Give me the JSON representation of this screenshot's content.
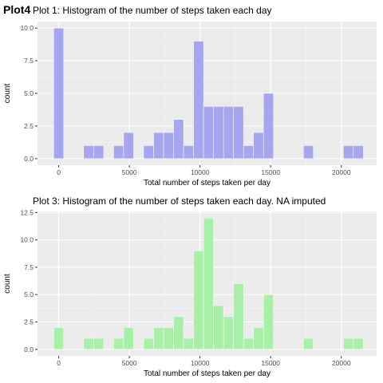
{
  "overlay_tag": "Plot4",
  "chart_data": [
    {
      "type": "bar",
      "title": "Plot 1: Histogram of the number of steps taken each day",
      "xlabel": "Total number of steps taken per day",
      "ylabel": "count",
      "xlim": [
        -1500,
        22500
      ],
      "ylim": [
        -0.5,
        10.5
      ],
      "x_ticks": [
        0,
        5000,
        10000,
        15000,
        20000
      ],
      "x_tick_labels": [
        "0",
        "5000",
        "10000",
        "15000",
        "20000"
      ],
      "y_ticks": [
        0.0,
        2.5,
        5.0,
        7.5,
        10.0
      ],
      "y_tick_labels": [
        "0.0",
        "2.5",
        "5.0",
        "7.5",
        "10.0"
      ],
      "bin_width": 707,
      "bin_centers": [
        0,
        707,
        1414,
        2121,
        2828,
        3535,
        4242,
        4949,
        5656,
        6363,
        7070,
        7777,
        8484,
        9191,
        9898,
        10605,
        11312,
        12019,
        12726,
        13433,
        14140,
        14847,
        15554,
        16261,
        16968,
        17675,
        18382,
        19089,
        19796,
        20503,
        21210
      ],
      "values": [
        10,
        0,
        0,
        1,
        1,
        0,
        1,
        2,
        0,
        1,
        2,
        2,
        3,
        1,
        9,
        4,
        4,
        4,
        4,
        1,
        2,
        5,
        0,
        0,
        0,
        1,
        0,
        0,
        0,
        1,
        1
      ],
      "fill": "#a5a5f0",
      "grid": true
    },
    {
      "type": "bar",
      "title": "Plot 3: Histogram of the number of steps taken each day. NA imputed",
      "xlabel": "Total number of steps taken per day",
      "ylabel": "count",
      "xlim": [
        -1500,
        22500
      ],
      "ylim": [
        -0.6,
        12.6
      ],
      "x_ticks": [
        0,
        5000,
        10000,
        15000,
        20000
      ],
      "x_tick_labels": [
        "0",
        "5000",
        "10000",
        "15000",
        "20000"
      ],
      "y_ticks": [
        0.0,
        2.5,
        5.0,
        7.5,
        10.0,
        12.5
      ],
      "y_tick_labels": [
        "0.0",
        "2.5",
        "5.0",
        "7.5",
        "10.0",
        "12.5"
      ],
      "bin_width": 707,
      "bin_centers": [
        0,
        707,
        1414,
        2121,
        2828,
        3535,
        4242,
        4949,
        5656,
        6363,
        7070,
        7777,
        8484,
        9191,
        9898,
        10605,
        11312,
        12019,
        12726,
        13433,
        14140,
        14847,
        15554,
        16261,
        16968,
        17675,
        18382,
        19089,
        19796,
        20503,
        21210
      ],
      "values": [
        2,
        0,
        0,
        1,
        1,
        0,
        1,
        2,
        0,
        1,
        2,
        2,
        3,
        1,
        9,
        12,
        4,
        3,
        6,
        1,
        2,
        5,
        0,
        0,
        0,
        1,
        0,
        0,
        0,
        1,
        1
      ],
      "fill": "#a8f0a8",
      "grid": true
    }
  ]
}
